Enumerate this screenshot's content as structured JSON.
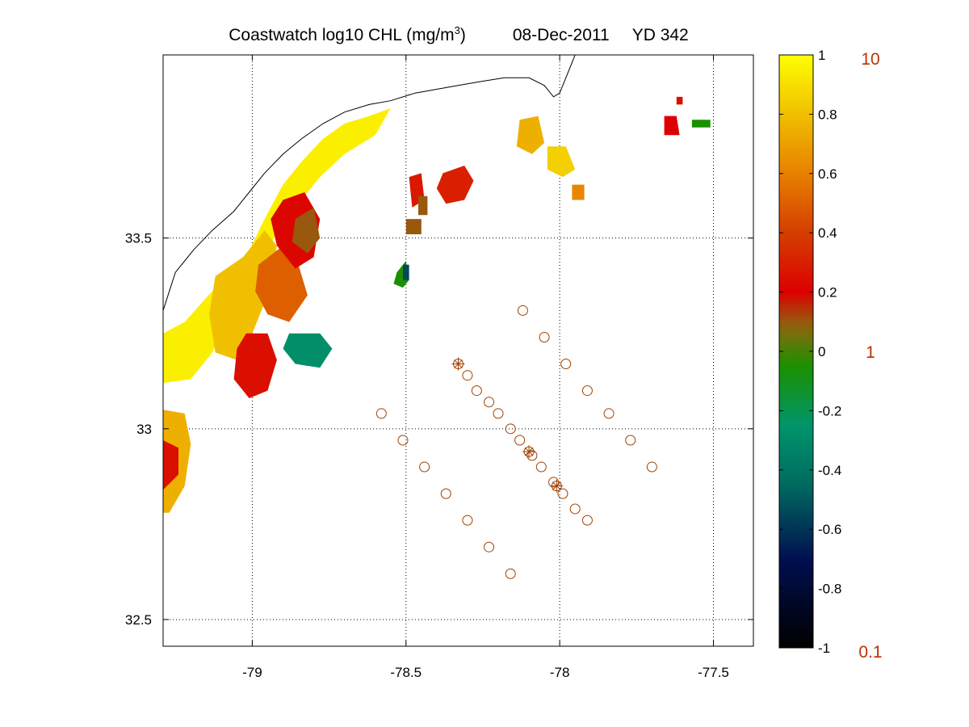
{
  "title": {
    "main": "Coastwatch  log10  CHL (mg/m",
    "superscript": "3",
    "close": ")",
    "date": "08-Dec-2011",
    "yearday": "YD 342"
  },
  "map": {
    "x_range": [
      -79.29,
      -77.37
    ],
    "y_range": [
      32.43,
      33.98
    ],
    "x_ticks": [
      -79,
      -78.5,
      -78,
      -77.5
    ],
    "x_tick_labels": [
      "-79",
      "-78.5",
      "-78",
      "-77.5"
    ],
    "y_ticks": [
      32.5,
      33,
      33.5
    ],
    "y_tick_labels": [
      "32.5",
      "33",
      "33.5"
    ],
    "grid": "dotted"
  },
  "colorbar": {
    "range": [
      -1,
      1
    ],
    "tick_values": [
      1,
      0.8,
      0.6,
      0.4,
      0.2,
      0,
      -0.2,
      -0.4,
      -0.6,
      -0.8,
      -1
    ],
    "tick_labels": [
      "1",
      "0.8",
      "0.6",
      "0.4",
      "0.2",
      "0",
      "-0.2",
      "-0.4",
      "-0.6",
      "-0.8",
      "-1"
    ],
    "right_labels": [
      "10",
      "1",
      "0.1"
    ],
    "right_label_values": [
      1,
      0,
      -1
    ],
    "right_label_color": "#c03000",
    "colormap": [
      {
        "v": -1.0,
        "c": "#000000"
      },
      {
        "v": -0.7,
        "c": "#001050"
      },
      {
        "v": -0.45,
        "c": "#006a60"
      },
      {
        "v": -0.25,
        "c": "#00956a"
      },
      {
        "v": -0.05,
        "c": "#1a9000"
      },
      {
        "v": 0.08,
        "c": "#8a6a10"
      },
      {
        "v": 0.2,
        "c": "#dd0000"
      },
      {
        "v": 0.4,
        "c": "#d43e00"
      },
      {
        "v": 0.6,
        "c": "#e88000"
      },
      {
        "v": 0.8,
        "c": "#f0c000"
      },
      {
        "v": 1.0,
        "c": "#ffff00"
      }
    ]
  },
  "stations": {
    "marker_color": "#a04000",
    "circles": [
      [
        -78.58,
        33.04
      ],
      [
        -78.51,
        32.97
      ],
      [
        -78.44,
        32.9
      ],
      [
        -78.37,
        32.83
      ],
      [
        -78.3,
        32.76
      ],
      [
        -78.23,
        32.69
      ],
      [
        -78.16,
        32.62
      ],
      [
        -78.3,
        33.14
      ],
      [
        -78.27,
        33.1
      ],
      [
        -78.23,
        33.07
      ],
      [
        -78.2,
        33.04
      ],
      [
        -78.16,
        33.0
      ],
      [
        -78.13,
        32.97
      ],
      [
        -78.09,
        32.93
      ],
      [
        -78.06,
        32.9
      ],
      [
        -78.02,
        32.86
      ],
      [
        -77.99,
        32.83
      ],
      [
        -77.95,
        32.79
      ],
      [
        -77.91,
        32.76
      ],
      [
        -78.12,
        33.31
      ],
      [
        -78.05,
        33.24
      ],
      [
        -77.98,
        33.17
      ],
      [
        -77.91,
        33.1
      ],
      [
        -77.84,
        33.04
      ],
      [
        -77.77,
        32.97
      ],
      [
        -77.7,
        32.9
      ]
    ],
    "stars": [
      [
        -78.33,
        33.17
      ],
      [
        -78.1,
        32.94
      ],
      [
        -78.01,
        32.85
      ]
    ]
  },
  "coastline": [
    [
      -79.29,
      33.31
    ],
    [
      -79.27,
      33.36
    ],
    [
      -79.25,
      33.41
    ],
    [
      -79.22,
      33.44
    ],
    [
      -79.19,
      33.47
    ],
    [
      -79.13,
      33.52
    ],
    [
      -79.06,
      33.57
    ],
    [
      -79.01,
      33.62
    ],
    [
      -78.96,
      33.67
    ],
    [
      -78.9,
      33.72
    ],
    [
      -78.84,
      33.76
    ],
    [
      -78.77,
      33.8
    ],
    [
      -78.7,
      33.83
    ],
    [
      -78.62,
      33.85
    ],
    [
      -78.55,
      33.86
    ],
    [
      -78.47,
      33.88
    ],
    [
      -78.4,
      33.89
    ],
    [
      -78.33,
      33.9
    ],
    [
      -78.26,
      33.91
    ],
    [
      -78.18,
      33.92
    ],
    [
      -78.1,
      33.92
    ],
    [
      -78.05,
      33.9
    ],
    [
      -78.02,
      33.87
    ],
    [
      -78.0,
      33.88
    ],
    [
      -77.98,
      33.92
    ],
    [
      -77.96,
      33.96
    ],
    [
      -77.95,
      33.98
    ]
  ],
  "chl_patches": [
    {
      "v": 0.95,
      "pts": [
        [
          -79.29,
          33.25
        ],
        [
          -79.22,
          33.28
        ],
        [
          -79.12,
          33.37
        ],
        [
          -79.02,
          33.45
        ],
        [
          -78.96,
          33.55
        ],
        [
          -78.9,
          33.64
        ],
        [
          -78.84,
          33.7
        ],
        [
          -78.77,
          33.76
        ],
        [
          -78.7,
          33.8
        ],
        [
          -78.62,
          33.82
        ],
        [
          -78.55,
          33.84
        ],
        [
          -78.6,
          33.77
        ],
        [
          -78.7,
          33.72
        ],
        [
          -78.78,
          33.66
        ],
        [
          -78.86,
          33.58
        ],
        [
          -78.93,
          33.5
        ],
        [
          -79.0,
          33.4
        ],
        [
          -79.07,
          33.3
        ],
        [
          -79.13,
          33.2
        ],
        [
          -79.2,
          33.13
        ],
        [
          -79.29,
          33.12
        ]
      ]
    },
    {
      "v": 0.8,
      "pts": [
        [
          -79.12,
          33.4
        ],
        [
          -79.03,
          33.45
        ],
        [
          -78.96,
          33.52
        ],
        [
          -78.92,
          33.48
        ],
        [
          -78.95,
          33.35
        ],
        [
          -79.0,
          33.25
        ],
        [
          -79.05,
          33.18
        ],
        [
          -79.12,
          33.2
        ],
        [
          -79.14,
          33.3
        ]
      ]
    },
    {
      "v": 0.5,
      "pts": [
        [
          -78.98,
          33.43
        ],
        [
          -78.9,
          33.48
        ],
        [
          -78.85,
          33.43
        ],
        [
          -78.82,
          33.35
        ],
        [
          -78.88,
          33.28
        ],
        [
          -78.95,
          33.3
        ],
        [
          -78.99,
          33.36
        ]
      ]
    },
    {
      "v": 0.22,
      "pts": [
        [
          -78.9,
          33.6
        ],
        [
          -78.83,
          33.62
        ],
        [
          -78.78,
          33.55
        ],
        [
          -78.8,
          33.45
        ],
        [
          -78.86,
          33.42
        ],
        [
          -78.92,
          33.48
        ],
        [
          -78.94,
          33.55
        ]
      ]
    },
    {
      "v": 0.1,
      "pts": [
        [
          -78.86,
          33.55
        ],
        [
          -78.8,
          33.58
        ],
        [
          -78.78,
          33.5
        ],
        [
          -78.82,
          33.46
        ],
        [
          -78.87,
          33.49
        ]
      ]
    },
    {
      "v": 0.25,
      "pts": [
        [
          -79.02,
          33.25
        ],
        [
          -78.95,
          33.25
        ],
        [
          -78.92,
          33.18
        ],
        [
          -78.95,
          33.1
        ],
        [
          -79.01,
          33.08
        ],
        [
          -79.06,
          33.13
        ],
        [
          -79.05,
          33.21
        ]
      ]
    },
    {
      "v": -0.28,
      "pts": [
        [
          -78.88,
          33.25
        ],
        [
          -78.78,
          33.25
        ],
        [
          -78.74,
          33.21
        ],
        [
          -78.78,
          33.16
        ],
        [
          -78.86,
          33.17
        ],
        [
          -78.9,
          33.21
        ]
      ]
    },
    {
      "v": 0.75,
      "pts": [
        [
          -79.29,
          33.05
        ],
        [
          -79.22,
          33.04
        ],
        [
          -79.2,
          32.96
        ],
        [
          -79.22,
          32.85
        ],
        [
          -79.27,
          32.78
        ],
        [
          -79.29,
          32.78
        ]
      ]
    },
    {
      "v": 0.25,
      "pts": [
        [
          -79.29,
          32.97
        ],
        [
          -79.24,
          32.95
        ],
        [
          -79.24,
          32.88
        ],
        [
          -79.29,
          32.84
        ]
      ]
    },
    {
      "v": 0.28,
      "pts": [
        [
          -78.49,
          33.66
        ],
        [
          -78.45,
          33.67
        ],
        [
          -78.44,
          33.6
        ],
        [
          -78.48,
          33.58
        ]
      ]
    },
    {
      "v": 0.1,
      "pts": [
        [
          -78.46,
          33.61
        ],
        [
          -78.43,
          33.61
        ],
        [
          -78.43,
          33.56
        ],
        [
          -78.46,
          33.56
        ]
      ]
    },
    {
      "v": 0.3,
      "pts": [
        [
          -78.38,
          33.67
        ],
        [
          -78.31,
          33.69
        ],
        [
          -78.28,
          33.65
        ],
        [
          -78.31,
          33.6
        ],
        [
          -78.37,
          33.59
        ],
        [
          -78.4,
          33.63
        ]
      ]
    },
    {
      "v": 0.1,
      "pts": [
        [
          -78.5,
          33.55
        ],
        [
          -78.45,
          33.55
        ],
        [
          -78.45,
          33.51
        ],
        [
          -78.5,
          33.51
        ]
      ]
    },
    {
      "v": -0.05,
      "pts": [
        [
          -78.53,
          33.41
        ],
        [
          -78.5,
          33.44
        ],
        [
          -78.49,
          33.39
        ],
        [
          -78.51,
          33.37
        ],
        [
          -78.54,
          33.38
        ]
      ]
    },
    {
      "v": -0.55,
      "pts": [
        [
          -78.51,
          33.43
        ],
        [
          -78.49,
          33.43
        ],
        [
          -78.49,
          33.39
        ],
        [
          -78.51,
          33.39
        ]
      ]
    },
    {
      "v": 0.75,
      "pts": [
        [
          -78.13,
          33.81
        ],
        [
          -78.07,
          33.82
        ],
        [
          -78.05,
          33.75
        ],
        [
          -78.09,
          33.72
        ],
        [
          -78.14,
          33.74
        ]
      ]
    },
    {
      "v": 0.85,
      "pts": [
        [
          -78.04,
          33.74
        ],
        [
          -77.98,
          33.74
        ],
        [
          -77.95,
          33.68
        ],
        [
          -77.99,
          33.66
        ],
        [
          -78.04,
          33.68
        ]
      ]
    },
    {
      "v": 0.62,
      "pts": [
        [
          -77.96,
          33.64
        ],
        [
          -77.92,
          33.64
        ],
        [
          -77.92,
          33.6
        ],
        [
          -77.96,
          33.6
        ]
      ]
    },
    {
      "v": 0.2,
      "pts": [
        [
          -77.66,
          33.82
        ],
        [
          -77.62,
          33.82
        ],
        [
          -77.61,
          33.77
        ],
        [
          -77.66,
          33.77
        ]
      ]
    },
    {
      "v": -0.05,
      "pts": [
        [
          -77.57,
          33.81
        ],
        [
          -77.51,
          33.81
        ],
        [
          -77.51,
          33.79
        ],
        [
          -77.57,
          33.79
        ]
      ]
    },
    {
      "v": 0.25,
      "pts": [
        [
          -77.62,
          33.87
        ],
        [
          -77.6,
          33.87
        ],
        [
          -77.6,
          33.85
        ],
        [
          -77.62,
          33.85
        ]
      ]
    }
  ]
}
